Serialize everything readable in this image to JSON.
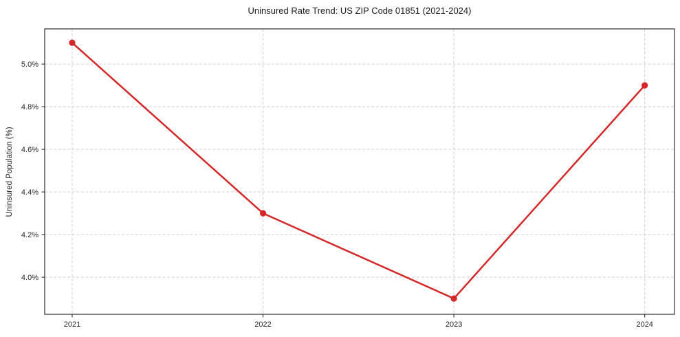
{
  "chart_data": {
    "type": "line",
    "title": "Uninsured Rate Trend: US ZIP Code 01851 (2021-2024)",
    "xlabel": "",
    "ylabel": "Uninsured Population (%)",
    "x": [
      2021,
      2022,
      2023,
      2024
    ],
    "x_tick_labels": [
      "2021",
      "2022",
      "2023",
      "2024"
    ],
    "series": [
      {
        "name": "Uninsured Rate",
        "values": [
          5.1,
          4.3,
          3.9,
          4.9
        ]
      }
    ],
    "y_ticks": [
      4.0,
      4.2,
      4.4,
      4.6,
      4.8,
      5.0
    ],
    "y_tick_labels": [
      "4.0%",
      "4.2%",
      "4.4%",
      "4.6%",
      "4.8%",
      "5.0%"
    ],
    "xlim": [
      2020.856,
      2024.156
    ],
    "ylim": [
      3.826,
      5.165
    ],
    "grid": true,
    "legend_visible": false,
    "line_color": "#d62728",
    "marker": "circle",
    "marker_radius": 4.6,
    "background_color": "#ffffff"
  }
}
